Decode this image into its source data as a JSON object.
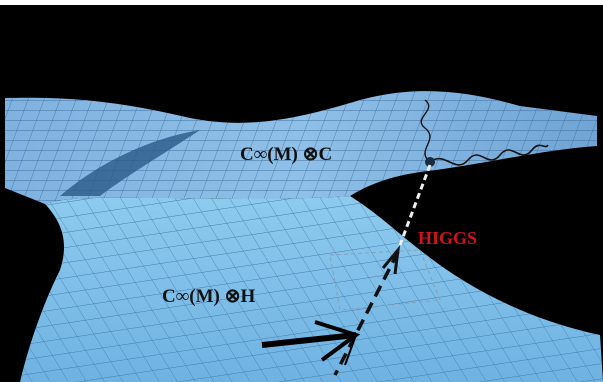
{
  "labels": {
    "upper_sheet": "C∞(M) ⊗C",
    "lower_sheet": "C∞(M) ⊗H",
    "higgs": "HIGGS"
  }
}
